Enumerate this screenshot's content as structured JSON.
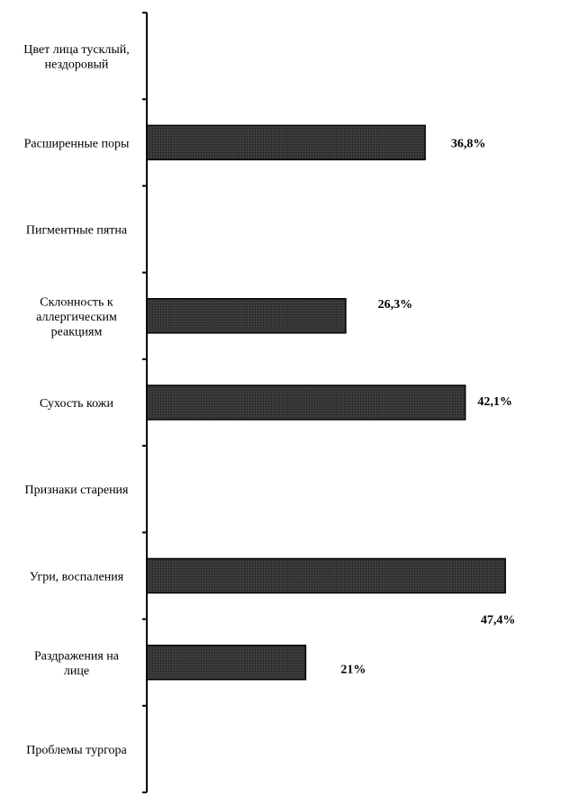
{
  "chart_data": {
    "type": "bar",
    "orientation": "horizontal",
    "categories": [
      [
        "Цвет лица тусклый,",
        "нездоровый"
      ],
      [
        "Расширенные поры"
      ],
      [
        "Пигментные пятна"
      ],
      [
        "Склонность к",
        "аллергическим",
        "реакциям"
      ],
      [
        "Сухость кожи"
      ],
      [
        "Признаки старения"
      ],
      [
        "Угри, воспаления"
      ],
      [
        "Раздражения на",
        "лице"
      ],
      [
        "Проблемы тургора"
      ]
    ],
    "values": [
      null,
      36.8,
      null,
      26.3,
      42.1,
      null,
      47.4,
      21,
      null
    ],
    "value_labels": [
      "",
      "36,8%",
      "",
      "26,3%",
      "42,1%",
      "",
      "47,4%",
      "21%",
      ""
    ],
    "xlim": [
      0,
      50
    ],
    "bar_color": "#333333",
    "grid": false,
    "legend": "none"
  }
}
